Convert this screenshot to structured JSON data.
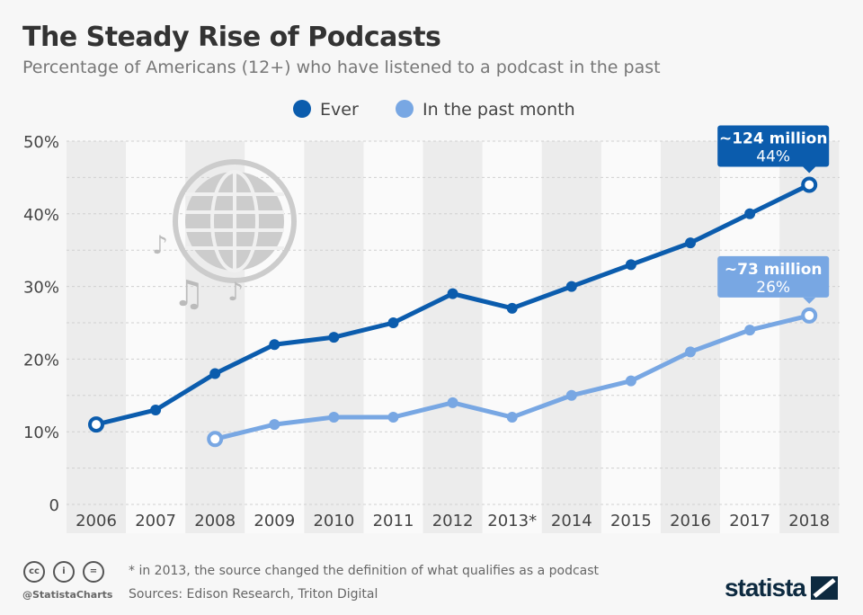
{
  "chart_data": {
    "type": "line",
    "title": "The Steady Rise of Podcasts",
    "subtitle": "Percentage of Americans (12+) who have listened to a podcast in the past",
    "categories": [
      "2006",
      "2007",
      "2008",
      "2009",
      "2010",
      "2011",
      "2012",
      "2013*",
      "2014",
      "2015",
      "2016",
      "2017",
      "2018"
    ],
    "yticks": [
      "0",
      "10%",
      "20%",
      "30%",
      "40%",
      "50%"
    ],
    "ylim": [
      0,
      50
    ],
    "grid": true,
    "legend_position": "top",
    "series": [
      {
        "name": "Ever",
        "color": "#0b5cad",
        "values": [
          11,
          13,
          18,
          22,
          23,
          25,
          29,
          27,
          30,
          33,
          36,
          40,
          44
        ]
      },
      {
        "name": "In the past month",
        "color": "#78a7e3",
        "values": [
          null,
          null,
          9,
          11,
          12,
          12,
          14,
          12,
          15,
          17,
          21,
          24,
          26
        ]
      }
    ],
    "annotations": [
      {
        "series": "Ever",
        "category": "2018",
        "title": "~124 million",
        "value": "44%"
      },
      {
        "series": "In the past month",
        "category": "2018",
        "title": "~73 million",
        "value": "26%"
      }
    ]
  },
  "footer": {
    "note": "* in 2013, the source changed the definition of what qualifies as a podcast",
    "sources": "Sources: Edison Research, Triton Digital",
    "handle": "@StatistaCharts",
    "brand": "statista"
  }
}
